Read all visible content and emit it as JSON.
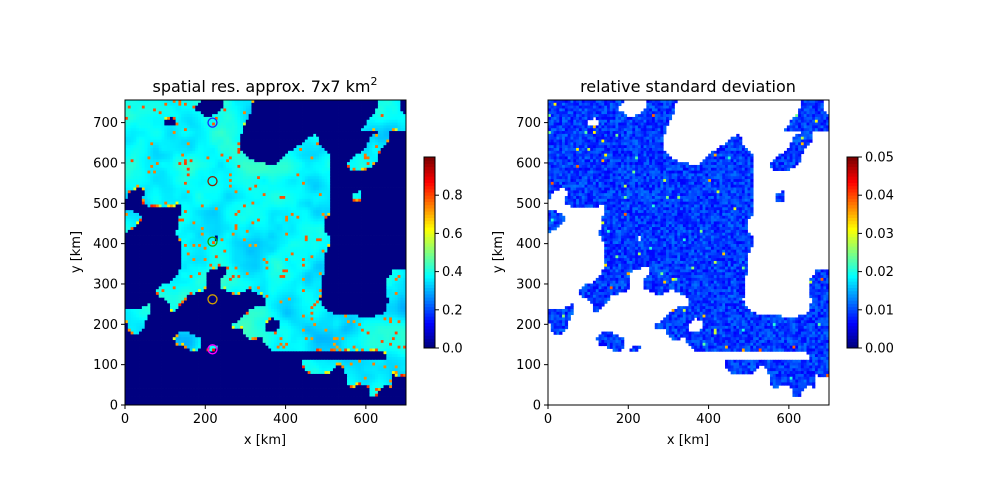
{
  "chart_data": [
    {
      "type": "heatmap",
      "title": "spatial res. approx. 7x7 km",
      "title_superscript": "2",
      "xlabel": "x [km]",
      "ylabel": "y [km]",
      "xlim": [
        0,
        700
      ],
      "ylim": [
        0,
        756
      ],
      "xticks": [
        "0",
        "200",
        "400",
        "600"
      ],
      "yticks": [
        "0",
        "100",
        "200",
        "300",
        "400",
        "500",
        "600",
        "700"
      ],
      "colormap": "jet",
      "colorbar": {
        "range": [
          0,
          1.0
        ],
        "ticks": [
          "0.0",
          "0.2",
          "0.4",
          "0.6",
          "0.8"
        ]
      },
      "grid": false,
      "markers": [
        {
          "x": 218,
          "y": 700,
          "color": "#2020ff"
        },
        {
          "x": 218,
          "y": 555,
          "color": "#8b2000"
        },
        {
          "x": 218,
          "y": 405,
          "color": "#1aa000"
        },
        {
          "x": 218,
          "y": 262,
          "color": "#d2a000"
        },
        {
          "x": 218,
          "y": 138,
          "color": "#ff00ff"
        }
      ]
    },
    {
      "type": "heatmap",
      "title": "relative standard deviation",
      "xlabel": "x [km]",
      "ylabel": "y [km]",
      "xlim": [
        0,
        700
      ],
      "ylim": [
        0,
        756
      ],
      "xticks": [
        "0",
        "200",
        "400",
        "600"
      ],
      "yticks": [
        "0",
        "100",
        "200",
        "300",
        "400",
        "500",
        "600",
        "700"
      ],
      "colormap": "jet",
      "colorbar": {
        "range": [
          0,
          0.05
        ],
        "ticks": [
          "0.00",
          "0.01",
          "0.02",
          "0.03",
          "0.04",
          "0.05"
        ]
      },
      "grid": false,
      "missing_color": "#ffffff"
    }
  ]
}
